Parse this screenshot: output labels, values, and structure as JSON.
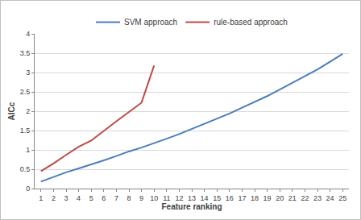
{
  "chart_data": {
    "type": "line",
    "x_label": "Feature ranking",
    "y_label": "AICc",
    "x": [
      1,
      2,
      3,
      4,
      5,
      6,
      7,
      8,
      9,
      10,
      11,
      12,
      13,
      14,
      15,
      16,
      17,
      18,
      19,
      20,
      21,
      22,
      23,
      24,
      25
    ],
    "series": [
      {
        "name": "SVM approach",
        "color": "#4a7ebb",
        "values": [
          0.18,
          0.3,
          0.42,
          0.52,
          0.62,
          0.73,
          0.84,
          0.96,
          1.06,
          1.17,
          1.29,
          1.41,
          1.54,
          1.67,
          1.8,
          1.94,
          2.09,
          2.24,
          2.39,
          2.56,
          2.73,
          2.9,
          3.08,
          3.28,
          3.48
        ]
      },
      {
        "name": "rule-based approach",
        "color": "#be4b48",
        "values": [
          0.45,
          0.65,
          0.87,
          1.08,
          1.24,
          1.5,
          1.74,
          1.98,
          2.22,
          3.18,
          null,
          null,
          null,
          null,
          null,
          null,
          null,
          null,
          null,
          null,
          null,
          null,
          null,
          null,
          null
        ]
      }
    ],
    "xlim": [
      0.5,
      25.5
    ],
    "xticks": [
      1,
      2,
      3,
      4,
      5,
      6,
      7,
      8,
      9,
      10,
      11,
      12,
      13,
      14,
      15,
      16,
      17,
      18,
      19,
      20,
      21,
      22,
      23,
      24,
      25
    ],
    "ylim": [
      0,
      4
    ],
    "yticks": [
      0,
      0.5,
      1,
      1.5,
      2,
      2.5,
      3,
      3.5,
      4
    ],
    "grid": true,
    "legend": "top"
  }
}
